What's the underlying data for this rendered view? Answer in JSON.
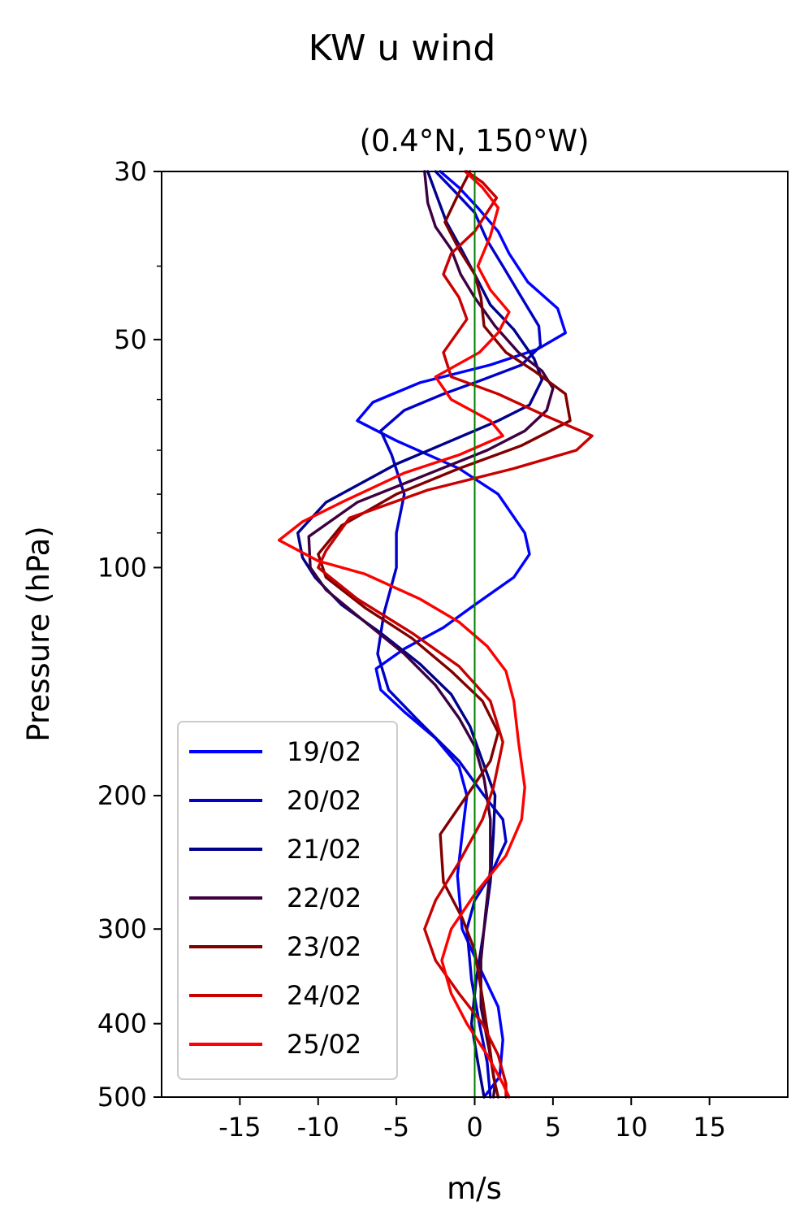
{
  "chart_data": {
    "type": "line",
    "title": "KW u wind",
    "subtitle": "(0.4°N, 150°W)",
    "xlabel": "m/s",
    "ylabel": "Pressure (hPa)",
    "xlim": [
      -20,
      20
    ],
    "ylim": [
      500,
      30
    ],
    "yscale": "log",
    "xticks": [
      "-15",
      "-10",
      "-5",
      "0",
      "5",
      "10",
      "15"
    ],
    "xtick_values": [
      -15,
      -10,
      -5,
      0,
      5,
      10,
      15
    ],
    "yticks": [
      "30",
      "50",
      "100",
      "200",
      "300",
      "400",
      "500"
    ],
    "ytick_values": [
      30,
      50,
      100,
      200,
      300,
      400,
      500
    ],
    "yminor_values": [
      40,
      60,
      70,
      80,
      90
    ],
    "grid": false,
    "legend_position": "lower-left",
    "reference_line": {
      "x": 0,
      "color": "#008000"
    },
    "series": [
      {
        "name": "19/02",
        "color": "#0000ff",
        "points": [
          [
            -2.2,
            30
          ],
          [
            -1.0,
            31.5
          ],
          [
            0.2,
            33.5
          ],
          [
            1.5,
            36
          ],
          [
            2.2,
            38.5
          ],
          [
            3.4,
            42
          ],
          [
            5.3,
            45.5
          ],
          [
            5.8,
            49
          ],
          [
            4.0,
            51.5
          ],
          [
            1.0,
            54
          ],
          [
            -3.5,
            57
          ],
          [
            -6.5,
            60.5
          ],
          [
            -7.5,
            64
          ],
          [
            -5.0,
            68
          ],
          [
            -1.0,
            74
          ],
          [
            1.5,
            80
          ],
          [
            3.2,
            90
          ],
          [
            3.5,
            96
          ],
          [
            2.5,
            103
          ],
          [
            0.0,
            112
          ],
          [
            -2.0,
            120
          ],
          [
            -4.5,
            128
          ],
          [
            -6.3,
            136
          ],
          [
            -6.0,
            145
          ],
          [
            -4.5,
            155
          ],
          [
            -2.5,
            168
          ],
          [
            -1.0,
            183
          ],
          [
            -0.5,
            200
          ],
          [
            -0.8,
            225
          ],
          [
            -1.1,
            255
          ],
          [
            -0.8,
            300
          ],
          [
            0.4,
            340
          ],
          [
            1.5,
            380
          ],
          [
            1.8,
            420
          ],
          [
            1.6,
            470
          ],
          [
            0.6,
            500
          ]
        ]
      },
      {
        "name": "20/02",
        "color": "#0000c8",
        "points": [
          [
            -2.5,
            30
          ],
          [
            -1.2,
            32
          ],
          [
            0.0,
            34
          ],
          [
            0.8,
            37
          ],
          [
            1.8,
            40
          ],
          [
            3.0,
            44
          ],
          [
            4.1,
            48
          ],
          [
            4.2,
            51
          ],
          [
            3.0,
            54
          ],
          [
            0.5,
            56.5
          ],
          [
            -2.0,
            59
          ],
          [
            -4.5,
            62
          ],
          [
            -6.0,
            66
          ],
          [
            -5.3,
            71
          ],
          [
            -4.5,
            80
          ],
          [
            -5.0,
            90
          ],
          [
            -5.0,
            100
          ],
          [
            -5.8,
            115
          ],
          [
            -6.2,
            130
          ],
          [
            -5.5,
            145
          ],
          [
            -3.5,
            160
          ],
          [
            -1.0,
            180
          ],
          [
            0.6,
            200
          ],
          [
            1.8,
            215
          ],
          [
            2.0,
            230
          ],
          [
            1.0,
            255
          ],
          [
            0.0,
            275
          ],
          [
            -0.5,
            300
          ],
          [
            -0.2,
            350
          ],
          [
            0.3,
            400
          ],
          [
            0.8,
            450
          ],
          [
            1.0,
            500
          ]
        ]
      },
      {
        "name": "21/02",
        "color": "#00008b",
        "points": [
          [
            -3.0,
            30
          ],
          [
            -2.5,
            32
          ],
          [
            -1.8,
            35
          ],
          [
            -1.0,
            37.5
          ],
          [
            0.0,
            41
          ],
          [
            1.0,
            45
          ],
          [
            2.5,
            48.5
          ],
          [
            3.8,
            53
          ],
          [
            4.3,
            56.5
          ],
          [
            3.5,
            61
          ],
          [
            1.5,
            64
          ],
          [
            -1.5,
            68
          ],
          [
            -5.0,
            73
          ],
          [
            -9.5,
            82
          ],
          [
            -11.3,
            90
          ],
          [
            -11.0,
            97
          ],
          [
            -10.2,
            103
          ],
          [
            -8.5,
            112
          ],
          [
            -6.0,
            122
          ],
          [
            -3.5,
            134
          ],
          [
            -1.5,
            147
          ],
          [
            -0.3,
            162
          ],
          [
            0.5,
            180
          ],
          [
            1.3,
            200
          ],
          [
            1.2,
            225
          ],
          [
            1.0,
            260
          ],
          [
            0.6,
            300
          ],
          [
            0.1,
            350
          ],
          [
            -0.2,
            400
          ],
          [
            0.2,
            450
          ],
          [
            0.6,
            500
          ]
        ]
      },
      {
        "name": "22/02",
        "color": "#3d0040",
        "points": [
          [
            -3.2,
            30
          ],
          [
            -3.0,
            33
          ],
          [
            -2.5,
            35.5
          ],
          [
            -1.5,
            38
          ],
          [
            -0.9,
            41
          ],
          [
            0.0,
            44
          ],
          [
            1.3,
            48
          ],
          [
            2.8,
            52
          ],
          [
            4.3,
            55
          ],
          [
            5.0,
            58
          ],
          [
            4.6,
            62
          ],
          [
            3.2,
            66
          ],
          [
            0.8,
            70
          ],
          [
            -3.5,
            76
          ],
          [
            -7.5,
            82
          ],
          [
            -10.6,
            91
          ],
          [
            -10.5,
            100
          ],
          [
            -9.5,
            107
          ],
          [
            -7.0,
            118
          ],
          [
            -4.5,
            130
          ],
          [
            -2.5,
            143
          ],
          [
            -1.0,
            158
          ],
          [
            0.0,
            172
          ],
          [
            0.6,
            190
          ],
          [
            1.0,
            215
          ],
          [
            1.0,
            250
          ],
          [
            0.7,
            285
          ],
          [
            0.4,
            330
          ],
          [
            0.4,
            380
          ],
          [
            0.9,
            430
          ],
          [
            1.3,
            480
          ],
          [
            1.2,
            500
          ]
        ]
      },
      {
        "name": "23/02",
        "color": "#800000",
        "points": [
          [
            -0.3,
            30
          ],
          [
            -1.0,
            32
          ],
          [
            -1.9,
            35
          ],
          [
            -1.0,
            38
          ],
          [
            0.0,
            41
          ],
          [
            0.4,
            44
          ],
          [
            0.6,
            48
          ],
          [
            2.0,
            52
          ],
          [
            3.8,
            55
          ],
          [
            5.8,
            59
          ],
          [
            6.1,
            64
          ],
          [
            3.0,
            69
          ],
          [
            -1.0,
            74
          ],
          [
            -5.0,
            80
          ],
          [
            -8.5,
            88
          ],
          [
            -10.0,
            96
          ],
          [
            -9.5,
            103
          ],
          [
            -7.0,
            113
          ],
          [
            -4.0,
            124
          ],
          [
            -1.5,
            137
          ],
          [
            0.5,
            150
          ],
          [
            1.5,
            165
          ],
          [
            1.0,
            180
          ],
          [
            -0.5,
            200
          ],
          [
            -2.2,
            225
          ],
          [
            -2.0,
            260
          ],
          [
            -0.8,
            290
          ],
          [
            0.0,
            320
          ],
          [
            0.5,
            370
          ],
          [
            0.9,
            420
          ],
          [
            1.2,
            470
          ],
          [
            1.5,
            500
          ]
        ]
      },
      {
        "name": "24/02",
        "color": "#c80000",
        "points": [
          [
            -0.5,
            30
          ],
          [
            0.5,
            31
          ],
          [
            1.4,
            32.5
          ],
          [
            0.0,
            36
          ],
          [
            -1.5,
            38.5
          ],
          [
            -2.0,
            41
          ],
          [
            -1.0,
            44
          ],
          [
            -0.5,
            47
          ],
          [
            -2.0,
            52
          ],
          [
            -1.5,
            56
          ],
          [
            1.5,
            59
          ],
          [
            4.5,
            63
          ],
          [
            7.5,
            67
          ],
          [
            6.5,
            70
          ],
          [
            2.5,
            74
          ],
          [
            -3.0,
            79
          ],
          [
            -8.0,
            86
          ],
          [
            -9.5,
            95
          ],
          [
            -10.0,
            100
          ],
          [
            -7.5,
            110
          ],
          [
            -4.0,
            122
          ],
          [
            -1.0,
            135
          ],
          [
            1.0,
            150
          ],
          [
            1.8,
            170
          ],
          [
            1.2,
            195
          ],
          [
            0.5,
            215
          ],
          [
            -1.0,
            245
          ],
          [
            -2.5,
            275
          ],
          [
            -3.2,
            300
          ],
          [
            -2.5,
            330
          ],
          [
            -1.0,
            365
          ],
          [
            0.5,
            400
          ],
          [
            1.5,
            440
          ],
          [
            2.0,
            480
          ],
          [
            2.0,
            500
          ]
        ]
      },
      {
        "name": "25/02",
        "color": "#ff0000",
        "points": [
          [
            -0.6,
            30
          ],
          [
            0.5,
            31.5
          ],
          [
            1.5,
            33.5
          ],
          [
            1.0,
            36.5
          ],
          [
            0.2,
            40
          ],
          [
            1.0,
            43
          ],
          [
            2.2,
            46
          ],
          [
            1.5,
            49
          ],
          [
            0.3,
            52
          ],
          [
            -2.5,
            56
          ],
          [
            -1.5,
            60
          ],
          [
            1.0,
            64
          ],
          [
            1.8,
            67
          ],
          [
            -1.0,
            71
          ],
          [
            -4.5,
            75
          ],
          [
            -8.5,
            82
          ],
          [
            -11.0,
            87
          ],
          [
            -12.5,
            92
          ],
          [
            -10.0,
            98
          ],
          [
            -7.0,
            102
          ],
          [
            -3.5,
            110
          ],
          [
            -1.0,
            118
          ],
          [
            0.8,
            127
          ],
          [
            2.0,
            137
          ],
          [
            2.5,
            150
          ],
          [
            2.8,
            170
          ],
          [
            3.2,
            195
          ],
          [
            3.0,
            215
          ],
          [
            2.0,
            240
          ],
          [
            0.0,
            270
          ],
          [
            -1.5,
            300
          ],
          [
            -2.1,
            330
          ],
          [
            -1.5,
            365
          ],
          [
            -0.5,
            400
          ],
          [
            0.8,
            440
          ],
          [
            1.8,
            480
          ],
          [
            2.2,
            500
          ]
        ]
      }
    ]
  }
}
